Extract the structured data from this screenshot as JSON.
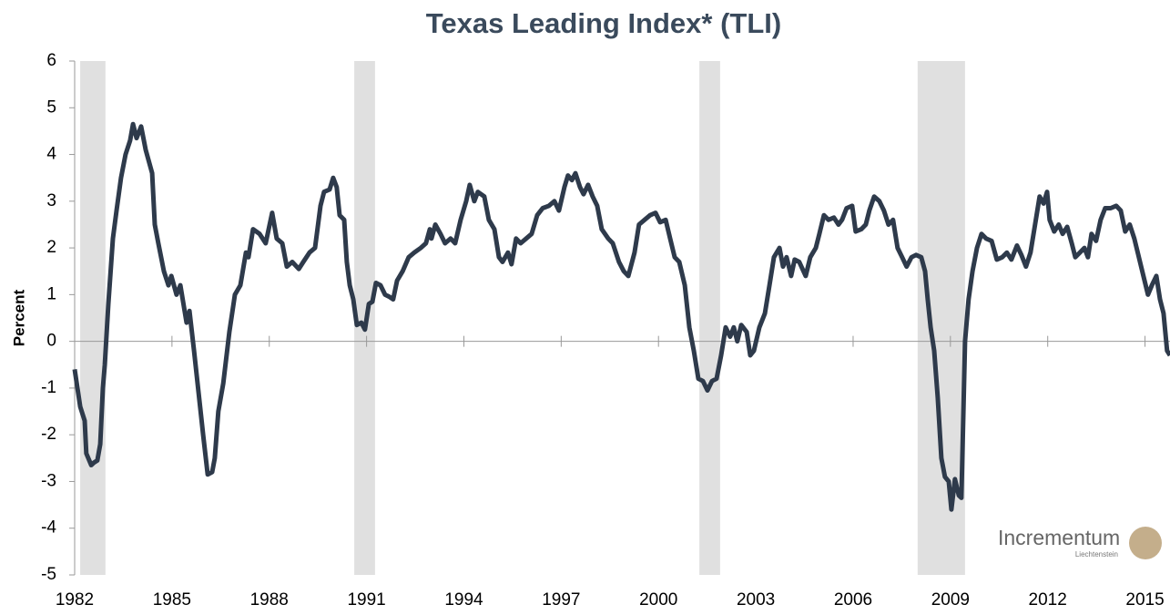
{
  "chart_data": {
    "type": "line",
    "title": "Texas Leading Index* (TLI)",
    "y_label": "Percent",
    "watermark": "Incrementum",
    "watermark_sub": "Liechtenstein",
    "xlim": [
      1982,
      2015.77
    ],
    "xticks": [
      1982,
      1985,
      1988,
      1991,
      1994,
      1997,
      2000,
      2003,
      2006,
      2009,
      2012,
      2015
    ],
    "ylim": [
      -5,
      6
    ],
    "yticks": [
      -5,
      -4,
      -3,
      -2,
      -1,
      0,
      1,
      2,
      3,
      4,
      5,
      6
    ],
    "shaded_periods": [
      [
        1982.17,
        1982.95
      ],
      [
        1990.62,
        1991.26
      ],
      [
        2001.26,
        2001.9
      ],
      [
        2007.99,
        2009.45
      ]
    ],
    "shade_color": "#e0e0e0",
    "x": [
      1982.0,
      1982.17,
      1982.31,
      1982.36,
      1982.51,
      1982.59,
      1982.7,
      1982.79,
      1982.87,
      1982.93,
      1983.04,
      1983.18,
      1983.29,
      1983.43,
      1983.57,
      1983.71,
      1983.8,
      1983.91,
      1984.05,
      1984.19,
      1984.39,
      1984.47,
      1984.58,
      1984.75,
      1984.89,
      1984.98,
      1985.14,
      1985.26,
      1985.45,
      1985.54,
      1985.68,
      1985.82,
      1985.96,
      1986.1,
      1986.24,
      1986.32,
      1986.43,
      1986.58,
      1986.77,
      1986.94,
      1987.11,
      1987.28,
      1987.36,
      1987.5,
      1987.7,
      1987.89,
      1988.09,
      1988.23,
      1988.4,
      1988.54,
      1988.71,
      1988.91,
      1989.05,
      1989.24,
      1989.41,
      1989.58,
      1989.69,
      1989.86,
      1989.97,
      1990.08,
      1990.17,
      1990.31,
      1990.39,
      1990.48,
      1990.59,
      1990.7,
      1990.84,
      1990.95,
      1991.07,
      1991.18,
      1991.29,
      1991.43,
      1991.57,
      1991.71,
      1991.82,
      1991.94,
      1992.11,
      1992.3,
      1992.47,
      1992.67,
      1992.83,
      1992.95,
      1993.0,
      1993.12,
      1993.28,
      1993.42,
      1993.59,
      1993.73,
      1993.9,
      1994.07,
      1994.18,
      1994.32,
      1994.43,
      1994.63,
      1994.77,
      1994.94,
      1995.08,
      1995.19,
      1995.36,
      1995.47,
      1995.61,
      1995.75,
      1995.92,
      1996.09,
      1996.26,
      1996.43,
      1996.62,
      1996.79,
      1996.93,
      1997.1,
      1997.21,
      1997.33,
      1997.44,
      1997.58,
      1997.69,
      1997.83,
      1997.97,
      1998.11,
      1998.25,
      1998.45,
      1998.59,
      1998.78,
      1998.93,
      1999.07,
      1999.26,
      1999.4,
      1999.57,
      1999.74,
      1999.91,
      2000.05,
      2000.22,
      2000.36,
      2000.5,
      2000.64,
      2000.81,
      2000.95,
      2001.09,
      2001.23,
      2001.37,
      2001.51,
      2001.65,
      2001.79,
      2001.93,
      2002.07,
      2002.21,
      2002.32,
      2002.43,
      2002.55,
      2002.72,
      2002.83,
      2002.94,
      2003.11,
      2003.28,
      2003.42,
      2003.56,
      2003.73,
      2003.84,
      2003.95,
      2004.09,
      2004.2,
      2004.34,
      2004.54,
      2004.68,
      2004.85,
      2004.96,
      2005.1,
      2005.24,
      2005.41,
      2005.55,
      2005.66,
      2005.8,
      2005.97,
      2006.08,
      2006.25,
      2006.39,
      2006.5,
      2006.65,
      2006.81,
      2006.95,
      2007.09,
      2007.23,
      2007.37,
      2007.51,
      2007.65,
      2007.8,
      2007.94,
      2008.1,
      2008.22,
      2008.3,
      2008.39,
      2008.5,
      2008.61,
      2008.72,
      2008.83,
      2008.95,
      2009.03,
      2009.14,
      2009.26,
      2009.34,
      2009.45,
      2009.56,
      2009.68,
      2009.82,
      2009.96,
      2010.1,
      2010.27,
      2010.43,
      2010.6,
      2010.74,
      2010.88,
      2011.05,
      2011.19,
      2011.33,
      2011.47,
      2011.61,
      2011.75,
      2011.87,
      2011.98,
      2012.06,
      2012.2,
      2012.34,
      2012.46,
      2012.6,
      2012.74,
      2012.85,
      2012.99,
      2013.13,
      2013.24,
      2013.35,
      2013.49,
      2013.63,
      2013.77,
      2013.94,
      2014.11,
      2014.25,
      2014.39,
      2014.53,
      2014.67,
      2014.81,
      2014.95,
      2015.09,
      2015.21,
      2015.35,
      2015.46,
      2015.57,
      2015.68,
      2015.77
    ],
    "series": [
      {
        "name": "TLI",
        "color": "#2e3a4b",
        "values": [
          -0.6,
          -1.4,
          -1.7,
          -2.4,
          -2.65,
          -2.6,
          -2.55,
          -2.2,
          -1.0,
          -0.5,
          0.8,
          2.2,
          2.8,
          3.5,
          4.0,
          4.3,
          4.65,
          4.35,
          4.6,
          4.1,
          3.6,
          2.5,
          2.1,
          1.5,
          1.2,
          1.4,
          1.0,
          1.2,
          0.4,
          0.65,
          -0.2,
          -1.1,
          -2.0,
          -2.85,
          -2.8,
          -2.5,
          -1.5,
          -0.9,
          0.2,
          1.0,
          1.2,
          1.9,
          1.8,
          2.4,
          2.3,
          2.1,
          2.75,
          2.2,
          2.1,
          1.6,
          1.7,
          1.55,
          1.7,
          1.9,
          2.0,
          2.9,
          3.2,
          3.25,
          3.5,
          3.3,
          2.7,
          2.6,
          1.7,
          1.2,
          0.9,
          0.35,
          0.4,
          0.25,
          0.8,
          0.85,
          1.25,
          1.2,
          1.0,
          0.95,
          0.9,
          1.3,
          1.5,
          1.8,
          1.9,
          2.0,
          2.1,
          2.4,
          2.2,
          2.5,
          2.3,
          2.1,
          2.2,
          2.1,
          2.6,
          3.0,
          3.35,
          3.0,
          3.2,
          3.1,
          2.6,
          2.4,
          1.8,
          1.7,
          1.9,
          1.65,
          2.2,
          2.1,
          2.2,
          2.3,
          2.7,
          2.85,
          2.9,
          3.0,
          2.8,
          3.3,
          3.55,
          3.45,
          3.6,
          3.3,
          3.15,
          3.35,
          3.1,
          2.9,
          2.4,
          2.2,
          2.1,
          1.7,
          1.5,
          1.4,
          1.9,
          2.5,
          2.6,
          2.7,
          2.75,
          2.55,
          2.6,
          2.2,
          1.8,
          1.7,
          1.2,
          0.3,
          -0.2,
          -0.8,
          -0.85,
          -1.05,
          -0.85,
          -0.8,
          -0.3,
          0.3,
          0.1,
          0.3,
          0.0,
          0.35,
          0.2,
          -0.3,
          -0.2,
          0.3,
          0.6,
          1.2,
          1.8,
          2.0,
          1.6,
          1.8,
          1.4,
          1.75,
          1.7,
          1.4,
          1.8,
          2.0,
          2.3,
          2.7,
          2.6,
          2.65,
          2.5,
          2.6,
          2.85,
          2.9,
          2.35,
          2.4,
          2.5,
          2.8,
          3.1,
          3.0,
          2.8,
          2.5,
          2.6,
          2.0,
          1.8,
          1.6,
          1.8,
          1.85,
          1.8,
          1.5,
          0.9,
          0.3,
          -0.2,
          -1.2,
          -2.5,
          -2.9,
          -3.0,
          -3.6,
          -2.95,
          -3.3,
          -3.35,
          0.0,
          0.9,
          1.5,
          2.0,
          2.3,
          2.2,
          2.15,
          1.75,
          1.8,
          1.9,
          1.75,
          2.05,
          1.85,
          1.6,
          1.9,
          2.5,
          3.1,
          2.95,
          3.2,
          2.6,
          2.35,
          2.5,
          2.3,
          2.45,
          2.1,
          1.8,
          1.9,
          2.0,
          1.8,
          2.3,
          2.15,
          2.6,
          2.85,
          2.85,
          2.9,
          2.8,
          2.35,
          2.5,
          2.2,
          1.8,
          1.4,
          1.0,
          1.2,
          1.4,
          0.9,
          0.6,
          -0.2,
          -0.3
        ]
      }
    ]
  }
}
